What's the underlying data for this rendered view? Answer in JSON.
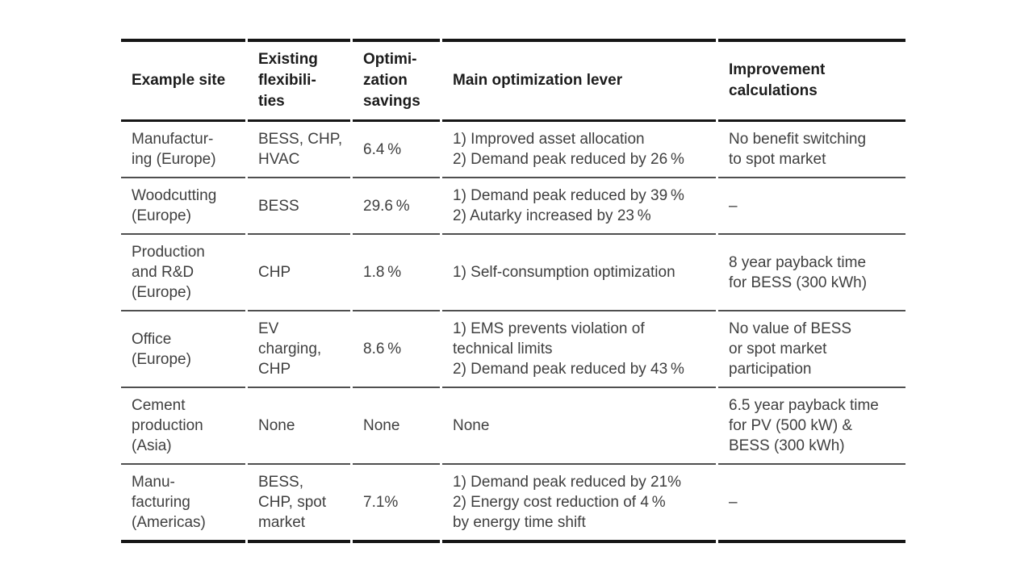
{
  "colors": {
    "background": "#ffffff",
    "header_text": "#1c1c1c",
    "body_text": "#3f3f3f",
    "rule_heavy": "#161616",
    "rule_light": "#4f4f4f"
  },
  "table": {
    "columns": [
      {
        "id": "site",
        "label": [
          "Example site"
        ]
      },
      {
        "id": "flexibilities",
        "label": [
          "Existing",
          "flexibili-",
          "ties"
        ]
      },
      {
        "id": "savings",
        "label": [
          "Optimi-",
          "zation",
          "savings"
        ]
      },
      {
        "id": "levers",
        "label": [
          "Main optimization lever"
        ]
      },
      {
        "id": "improvement",
        "label": [
          "Improvement",
          "calculations"
        ]
      }
    ],
    "rows": [
      {
        "site": [
          "Manufactur-",
          "ing (Europe)"
        ],
        "flexibilities": [
          "BESS, CHP,",
          "HVAC"
        ],
        "savings": "6.4 %",
        "levers": [
          "1) Improved asset allocation",
          "2) Demand peak reduced by 26 %"
        ],
        "improvement": [
          "No benefit switching",
          "to spot market"
        ]
      },
      {
        "site": [
          "Woodcutting",
          "(Europe)"
        ],
        "flexibilities": [
          "BESS"
        ],
        "savings": "29.6 %",
        "levers": [
          "1) Demand peak reduced by 39 %",
          "2) Autarky increased by 23 %"
        ],
        "improvement": [
          "–"
        ]
      },
      {
        "site": [
          "Production",
          "and R&D",
          "(Europe)"
        ],
        "flexibilities": [
          "CHP"
        ],
        "savings": "1.8 %",
        "levers": [
          "1) Self-consumption optimization"
        ],
        "improvement": [
          "8 year payback time",
          "for BESS (300 kWh)"
        ]
      },
      {
        "site": [
          "Office",
          "(Europe)"
        ],
        "flexibilities": [
          "EV",
          "charging,",
          "CHP"
        ],
        "savings": "8.6 %",
        "levers": [
          "1) EMS prevents violation of",
          "technical limits",
          "2) Demand peak reduced by 43 %"
        ],
        "improvement": [
          "No value of BESS",
          "or spot market",
          "participation"
        ]
      },
      {
        "site": [
          "Cement",
          "production",
          "(Asia)"
        ],
        "flexibilities": [
          "None"
        ],
        "savings": "None",
        "levers": [
          "None"
        ],
        "improvement": [
          "6.5 year payback time",
          "for PV (500 kW) &",
          "BESS (300 kWh)"
        ]
      },
      {
        "site": [
          "Manu-",
          "facturing",
          "(Americas)"
        ],
        "flexibilities": [
          "BESS,",
          "CHP, spot",
          "market"
        ],
        "savings": "7.1%",
        "levers": [
          "1) Demand peak reduced by 21%",
          "2) Energy cost reduction of 4 %",
          "by energy time shift"
        ],
        "improvement": [
          "–"
        ]
      }
    ]
  }
}
